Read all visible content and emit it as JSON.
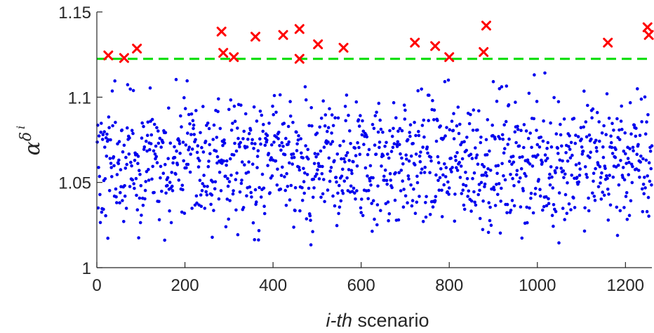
{
  "chart_data": {
    "type": "scatter",
    "title": "",
    "xlabel_italic": "i-th",
    "xlabel_rest": " scenario",
    "ylabel_base": "α",
    "ylabel_sup": "δ",
    "ylabel_supsup": "i",
    "xlim": [
      0,
      1260
    ],
    "ylim": [
      1.0,
      1.15
    ],
    "xticks": [
      "0",
      "200",
      "400",
      "600",
      "800",
      "1000",
      "1200"
    ],
    "xtick_values": [
      0,
      200,
      400,
      600,
      800,
      1000,
      1200
    ],
    "yticks": [
      "1",
      "1.05",
      "1.1",
      "1.15"
    ],
    "ytick_values": [
      1.0,
      1.05,
      1.1,
      1.15
    ],
    "grid": false,
    "threshold": 1.1225,
    "colors": {
      "points": "#0000ee",
      "exceed_markers": "#ff0000",
      "threshold_line": "#00dd00",
      "axis": "#262626"
    },
    "n_points": 1260,
    "points_range": [
      1.005,
      1.12
    ],
    "exceed_points": [
      {
        "x": 26,
        "y": 1.1245
      },
      {
        "x": 62,
        "y": 1.123
      },
      {
        "x": 91,
        "y": 1.1285
      },
      {
        "x": 283,
        "y": 1.1385
      },
      {
        "x": 287,
        "y": 1.126
      },
      {
        "x": 311,
        "y": 1.1235
      },
      {
        "x": 360,
        "y": 1.1355
      },
      {
        "x": 423,
        "y": 1.1365
      },
      {
        "x": 460,
        "y": 1.14
      },
      {
        "x": 460,
        "y": 1.1225
      },
      {
        "x": 502,
        "y": 1.131
      },
      {
        "x": 560,
        "y": 1.129
      },
      {
        "x": 722,
        "y": 1.132
      },
      {
        "x": 768,
        "y": 1.13
      },
      {
        "x": 800,
        "y": 1.1235
      },
      {
        "x": 878,
        "y": 1.1265
      },
      {
        "x": 884,
        "y": 1.142
      },
      {
        "x": 1160,
        "y": 1.132
      },
      {
        "x": 1250,
        "y": 1.141
      },
      {
        "x": 1253,
        "y": 1.1365
      }
    ]
  }
}
